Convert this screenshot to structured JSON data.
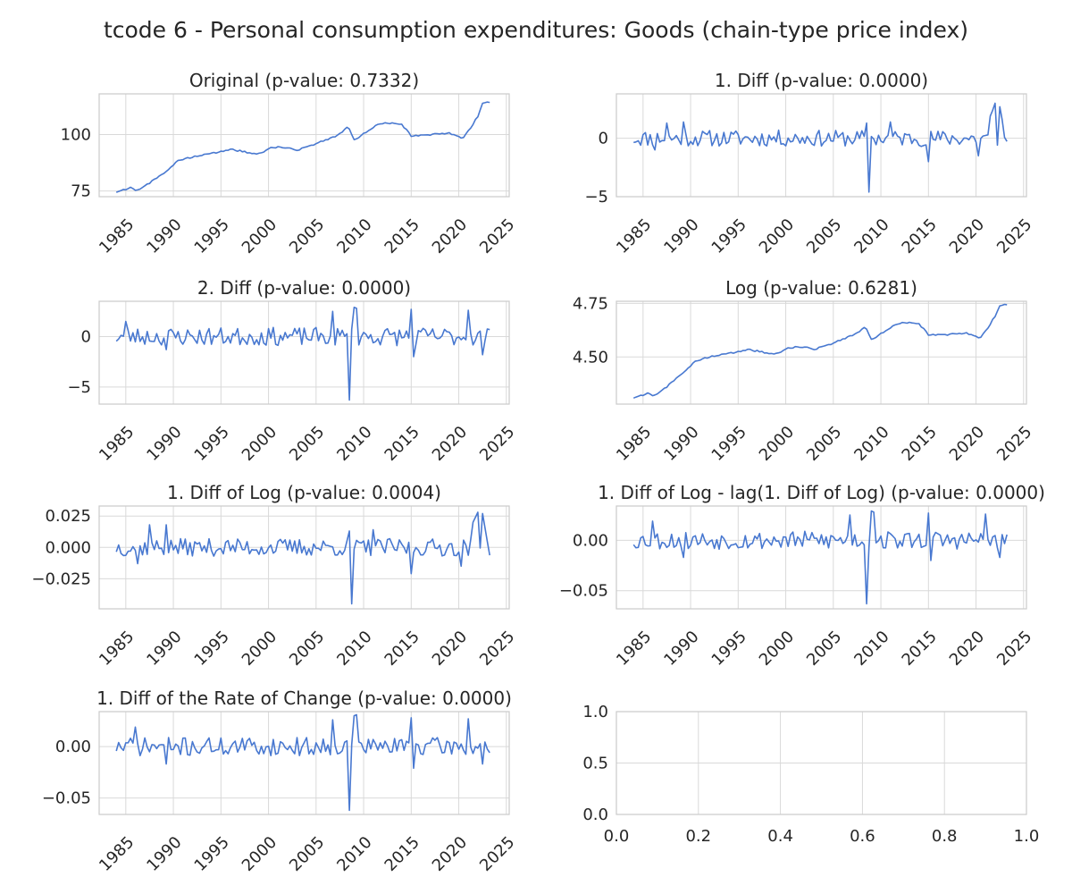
{
  "figure": {
    "suptitle": "tcode 6 - Personal consumption expenditures: Goods (chain-type price index)",
    "line_color": "#4878d0"
  },
  "chart_data": [
    {
      "type": "line",
      "title": "Original (p-value: 0.7332)",
      "xlim": [
        1982.2,
        2025.3
      ],
      "ylim": [
        72.5,
        118
      ],
      "xticks": [
        1985,
        1990,
        1995,
        2000,
        2005,
        2010,
        2015,
        2020,
        2025
      ],
      "yticks": [
        {
          "v": 75,
          "label": "75"
        },
        {
          "v": 100,
          "label": "100"
        }
      ],
      "kind": "level",
      "anchors": [
        [
          1984.0,
          74.6
        ],
        [
          1985.5,
          76.5
        ],
        [
          1986.2,
          75.3
        ],
        [
          1987.5,
          78.5
        ],
        [
          1989.0,
          83.0
        ],
        [
          1990.5,
          88.5
        ],
        [
          1992.0,
          90.0
        ],
        [
          1994.0,
          91.5
        ],
        [
          1996.0,
          93.5
        ],
        [
          1998.0,
          92.0
        ],
        [
          1999.0,
          91.5
        ],
        [
          2000.5,
          94.5
        ],
        [
          2002.0,
          94.0
        ],
        [
          2003.0,
          93.0
        ],
        [
          2005.0,
          96.0
        ],
        [
          2007.0,
          99.0
        ],
        [
          2008.4,
          103.5
        ],
        [
          2009.0,
          97.5
        ],
        [
          2010.0,
          100.5
        ],
        [
          2011.5,
          104.5
        ],
        [
          2012.5,
          105.0
        ],
        [
          2014.0,
          104.5
        ],
        [
          2015.0,
          99.5
        ],
        [
          2017.0,
          100.0
        ],
        [
          2019.0,
          100.5
        ],
        [
          2020.4,
          98.5
        ],
        [
          2021.0,
          101.5
        ],
        [
          2022.0,
          108.0
        ],
        [
          2022.5,
          114.0
        ],
        [
          2023.2,
          114.3
        ]
      ]
    },
    {
      "type": "line",
      "title": "1. Diff (p-value: 0.0000)",
      "xlim": [
        1982.2,
        2025.3
      ],
      "ylim": [
        -5.0,
        3.8
      ],
      "xticks": [
        1985,
        1990,
        1995,
        2000,
        2005,
        2010,
        2015,
        2020,
        2025
      ],
      "yticks": [
        {
          "v": -5,
          "label": "−5"
        },
        {
          "v": 0,
          "label": "0"
        }
      ],
      "kind": "noise",
      "amp": 0.7,
      "seed": 11,
      "spikes": [
        [
          2008.7,
          -4.6
        ],
        [
          2008.5,
          1.3
        ],
        [
          2011.0,
          1.4
        ],
        [
          2021.5,
          1.9
        ],
        [
          2021.8,
          2.4
        ],
        [
          2022.1,
          3.0
        ],
        [
          2022.4,
          2.7
        ],
        [
          2022.7,
          1.6
        ],
        [
          1987.6,
          1.3
        ],
        [
          1989.3,
          1.4
        ],
        [
          2015.0,
          -2.0
        ],
        [
          2020.3,
          -1.5
        ],
        [
          1986.3,
          -1.0
        ]
      ]
    },
    {
      "type": "line",
      "title": "2. Diff (p-value: 0.0000)",
      "xlim": [
        1982.2,
        2025.3
      ],
      "ylim": [
        -6.7,
        3.5
      ],
      "xticks": [
        1985,
        1990,
        1995,
        2000,
        2005,
        2010,
        2015,
        2020,
        2025
      ],
      "yticks": [
        {
          "v": -5,
          "label": "−5"
        },
        {
          "v": 0,
          "label": "0"
        }
      ],
      "kind": "noise",
      "amp": 0.9,
      "seed": 23,
      "spikes": [
        [
          2008.6,
          -6.3
        ],
        [
          2008.9,
          2.9
        ],
        [
          2009.2,
          2.8
        ],
        [
          2006.7,
          2.5
        ],
        [
          2015.0,
          2.7
        ],
        [
          2021.0,
          2.6
        ],
        [
          2022.5,
          -1.8
        ],
        [
          1984.9,
          1.5
        ],
        [
          1989.3,
          -1.3
        ],
        [
          2015.3,
          -2.0
        ]
      ]
    },
    {
      "type": "line",
      "title": "Log (p-value: 0.6281)",
      "xlim": [
        1982.2,
        2025.3
      ],
      "ylim": [
        4.28,
        4.76
      ],
      "xticks": [
        1985,
        1990,
        1995,
        2000,
        2005,
        2010,
        2015,
        2020,
        2025
      ],
      "yticks": [
        {
          "v": 4.5,
          "label": "4.50"
        },
        {
          "v": 4.75,
          "label": "4.75"
        }
      ],
      "kind": "level",
      "anchors": [
        [
          1984.0,
          4.31
        ],
        [
          1985.5,
          4.33
        ],
        [
          1986.2,
          4.32
        ],
        [
          1987.5,
          4.36
        ],
        [
          1989.0,
          4.42
        ],
        [
          1990.5,
          4.48
        ],
        [
          1992.0,
          4.5
        ],
        [
          1994.0,
          4.515
        ],
        [
          1996.0,
          4.535
        ],
        [
          1998.0,
          4.52
        ],
        [
          1999.0,
          4.515
        ],
        [
          2000.5,
          4.545
        ],
        [
          2002.0,
          4.545
        ],
        [
          2003.0,
          4.535
        ],
        [
          2005.0,
          4.565
        ],
        [
          2007.0,
          4.6
        ],
        [
          2008.4,
          4.64
        ],
        [
          2009.0,
          4.58
        ],
        [
          2010.0,
          4.61
        ],
        [
          2011.5,
          4.65
        ],
        [
          2012.5,
          4.66
        ],
        [
          2014.0,
          4.655
        ],
        [
          2015.0,
          4.605
        ],
        [
          2017.0,
          4.605
        ],
        [
          2019.0,
          4.61
        ],
        [
          2020.4,
          4.59
        ],
        [
          2021.0,
          4.62
        ],
        [
          2022.0,
          4.69
        ],
        [
          2022.5,
          4.74
        ],
        [
          2023.2,
          4.745
        ]
      ]
    },
    {
      "type": "line",
      "title": "1. Diff of Log (p-value: 0.0004)",
      "xlim": [
        1982.2,
        2025.3
      ],
      "ylim": [
        -0.049,
        0.033
      ],
      "xticks": [
        1985,
        1990,
        1995,
        2000,
        2005,
        2010,
        2015,
        2020,
        2025
      ],
      "yticks": [
        {
          "v": -0.025,
          "label": "−0.025"
        },
        {
          "v": 0,
          "label": "0.000"
        },
        {
          "v": 0.025,
          "label": "0.025"
        }
      ],
      "kind": "noise",
      "amp": 0.007,
      "seed": 37,
      "spikes": [
        [
          2008.7,
          -0.045
        ],
        [
          2008.5,
          0.013
        ],
        [
          2011.0,
          0.014
        ],
        [
          2021.5,
          0.02
        ],
        [
          2021.8,
          0.024
        ],
        [
          2022.1,
          0.028
        ],
        [
          2022.4,
          0.027
        ],
        [
          2022.7,
          0.016
        ],
        [
          1987.6,
          0.018
        ],
        [
          1989.3,
          0.018
        ],
        [
          2015.0,
          -0.021
        ],
        [
          2020.3,
          -0.015
        ],
        [
          1986.3,
          -0.013
        ]
      ]
    },
    {
      "type": "line",
      "title": "1. Diff of Log - lag(1. Diff of Log) (p-value: 0.0000)",
      "xlim": [
        1982.2,
        2025.3
      ],
      "ylim": [
        -0.068,
        0.034
      ],
      "xticks": [
        1985,
        1990,
        1995,
        2000,
        2005,
        2010,
        2015,
        2020,
        2025
      ],
      "yticks": [
        {
          "v": -0.05,
          "label": "−0.05"
        },
        {
          "v": 0,
          "label": "0.00"
        }
      ],
      "kind": "noise",
      "amp": 0.009,
      "seed": 53,
      "spikes": [
        [
          2008.6,
          -0.063
        ],
        [
          2008.9,
          0.029
        ],
        [
          2009.2,
          0.028
        ],
        [
          2006.7,
          0.025
        ],
        [
          2015.0,
          0.027
        ],
        [
          2021.0,
          0.026
        ],
        [
          2022.5,
          -0.017
        ],
        [
          1986.0,
          0.019
        ],
        [
          1989.3,
          -0.017
        ],
        [
          2015.3,
          -0.02
        ]
      ]
    },
    {
      "type": "line",
      "title": "1. Diff of the Rate of Change (p-value: 0.0000)",
      "xlim": [
        1982.2,
        2025.3
      ],
      "ylim": [
        -0.066,
        0.034
      ],
      "xticks": [
        1985,
        1990,
        1995,
        2000,
        2005,
        2010,
        2015,
        2020,
        2025
      ],
      "yticks": [
        {
          "v": -0.05,
          "label": "−0.05"
        },
        {
          "v": 0,
          "label": "0.00"
        }
      ],
      "kind": "noise",
      "amp": 0.009,
      "seed": 71,
      "spikes": [
        [
          2008.6,
          -0.062
        ],
        [
          2008.9,
          0.03
        ],
        [
          2009.2,
          0.031
        ],
        [
          2006.7,
          0.026
        ],
        [
          2015.0,
          0.028
        ],
        [
          2021.0,
          0.027
        ],
        [
          2022.5,
          -0.017
        ],
        [
          1985.9,
          0.019
        ],
        [
          1989.3,
          -0.017
        ],
        [
          2015.3,
          -0.021
        ]
      ]
    },
    {
      "type": "line",
      "title": "",
      "empty": true,
      "xlim": [
        0,
        1
      ],
      "ylim": [
        0,
        1
      ],
      "xticks_numeric": [
        {
          "v": 0.0,
          "label": "0.0"
        },
        {
          "v": 0.2,
          "label": "0.2"
        },
        {
          "v": 0.4,
          "label": "0.4"
        },
        {
          "v": 0.6,
          "label": "0.6"
        },
        {
          "v": 0.8,
          "label": "0.8"
        },
        {
          "v": 1.0,
          "label": "1.0"
        }
      ],
      "yticks": [
        {
          "v": 0.0,
          "label": "0.0"
        },
        {
          "v": 0.5,
          "label": "0.5"
        },
        {
          "v": 1.0,
          "label": "1.0"
        }
      ]
    }
  ]
}
